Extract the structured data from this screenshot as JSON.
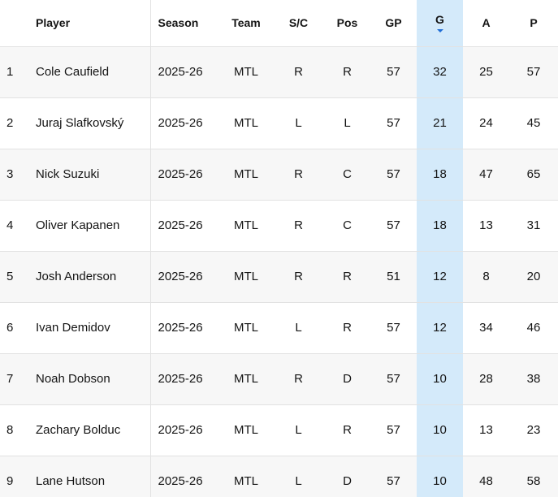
{
  "table": {
    "sorted_column": "g",
    "sort_direction": "desc",
    "columns": [
      {
        "key": "rank",
        "label": ""
      },
      {
        "key": "player",
        "label": "Player"
      },
      {
        "key": "season",
        "label": "Season"
      },
      {
        "key": "team",
        "label": "Team"
      },
      {
        "key": "shoots",
        "label": "S/C"
      },
      {
        "key": "pos",
        "label": "Pos"
      },
      {
        "key": "gp",
        "label": "GP"
      },
      {
        "key": "g",
        "label": "G",
        "sorted": true
      },
      {
        "key": "a",
        "label": "A"
      },
      {
        "key": "p",
        "label": "P"
      }
    ],
    "rows": [
      {
        "rank": "1",
        "player": "Cole Caufield",
        "season": "2025-26",
        "team": "MTL",
        "shoots": "R",
        "pos": "R",
        "gp": "57",
        "g": "32",
        "a": "25",
        "p": "57"
      },
      {
        "rank": "2",
        "player": "Juraj Slafkovský",
        "season": "2025-26",
        "team": "MTL",
        "shoots": "L",
        "pos": "L",
        "gp": "57",
        "g": "21",
        "a": "24",
        "p": "45"
      },
      {
        "rank": "3",
        "player": "Nick Suzuki",
        "season": "2025-26",
        "team": "MTL",
        "shoots": "R",
        "pos": "C",
        "gp": "57",
        "g": "18",
        "a": "47",
        "p": "65"
      },
      {
        "rank": "4",
        "player": "Oliver Kapanen",
        "season": "2025-26",
        "team": "MTL",
        "shoots": "R",
        "pos": "C",
        "gp": "57",
        "g": "18",
        "a": "13",
        "p": "31"
      },
      {
        "rank": "5",
        "player": "Josh Anderson",
        "season": "2025-26",
        "team": "MTL",
        "shoots": "R",
        "pos": "R",
        "gp": "51",
        "g": "12",
        "a": "8",
        "p": "20"
      },
      {
        "rank": "6",
        "player": "Ivan Demidov",
        "season": "2025-26",
        "team": "MTL",
        "shoots": "L",
        "pos": "R",
        "gp": "57",
        "g": "12",
        "a": "34",
        "p": "46"
      },
      {
        "rank": "7",
        "player": "Noah Dobson",
        "season": "2025-26",
        "team": "MTL",
        "shoots": "R",
        "pos": "D",
        "gp": "57",
        "g": "10",
        "a": "28",
        "p": "38"
      },
      {
        "rank": "8",
        "player": "Zachary Bolduc",
        "season": "2025-26",
        "team": "MTL",
        "shoots": "L",
        "pos": "R",
        "gp": "57",
        "g": "10",
        "a": "13",
        "p": "23"
      },
      {
        "rank": "9",
        "player": "Lane Hutson",
        "season": "2025-26",
        "team": "MTL",
        "shoots": "L",
        "pos": "D",
        "gp": "57",
        "g": "10",
        "a": "48",
        "p": "58"
      }
    ]
  },
  "colors": {
    "sorted_column_bg": "#d4ebfa",
    "sort_arrow": "#1f6dd6",
    "zebra_odd_bg": "#f7f7f7",
    "zebra_even_bg": "#ffffff",
    "row_border": "#e2e2e2",
    "text": "#141414"
  },
  "icons": {
    "sort_desc": "▾"
  }
}
